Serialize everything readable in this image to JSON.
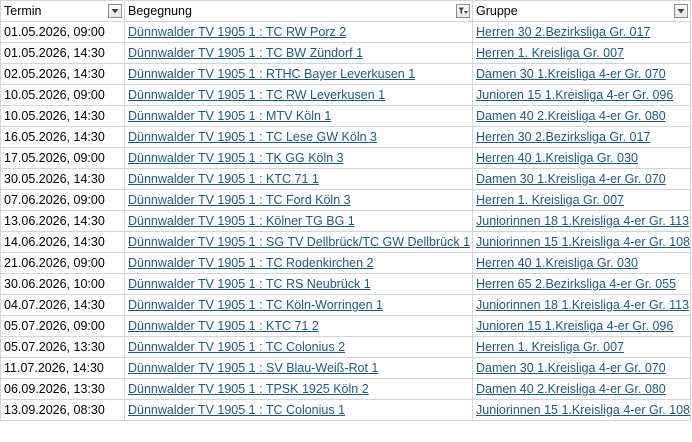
{
  "columns": [
    {
      "label": "Termin",
      "filter_active": false
    },
    {
      "label": "Begegnung",
      "filter_active": true
    },
    {
      "label": "Gruppe",
      "filter_active": false
    }
  ],
  "rows": [
    {
      "termin": "01.05.2026, 09:00",
      "begegnung": "Dünnwalder TV 1905 1 : TC RW Porz 2",
      "gruppe": "Herren 30 2.Bezirksliga Gr. 017"
    },
    {
      "termin": "01.05.2026, 14:30",
      "begegnung": "Dünnwalder TV 1905 1 : TC BW Zündorf 1",
      "gruppe": "Herren 1. Kreisliga Gr. 007"
    },
    {
      "termin": "02.05.2026, 14:30",
      "begegnung": "Dünnwalder TV 1905 1 : RTHC Bayer Leverkusen 1",
      "gruppe": "Damen 30 1.Kreisliga 4-er Gr. 070"
    },
    {
      "termin": "10.05.2026, 09:00",
      "begegnung": "Dünnwalder TV 1905 1 : TC RW Leverkusen 1",
      "gruppe": "Junioren 15 1.Kreisliga 4-er Gr. 096"
    },
    {
      "termin": "10.05.2026, 14:30",
      "begegnung": "Dünnwalder TV 1905 1 : MTV Köln 1",
      "gruppe": "Damen 40 2.Kreisliga 4-er Gr. 080"
    },
    {
      "termin": "16.05.2026, 14:30",
      "begegnung": "Dünnwalder TV 1905 1 : TC Lese GW Köln 3",
      "gruppe": "Herren 30 2.Bezirksliga Gr. 017"
    },
    {
      "termin": "17.05.2026, 09:00",
      "begegnung": "Dünnwalder TV 1905 1 : TK GG Köln 3",
      "gruppe": "Herren 40 1.Kreisliga Gr. 030"
    },
    {
      "termin": "30.05.2026, 14:30",
      "begegnung": "Dünnwalder TV 1905 1 : KTC 71 1",
      "gruppe": "Damen 30 1.Kreisliga 4-er Gr. 070"
    },
    {
      "termin": "07.06.2026, 09:00",
      "begegnung": "Dünnwalder TV 1905 1 : TC Ford Köln 3",
      "gruppe": "Herren 1. Kreisliga Gr. 007"
    },
    {
      "termin": "13.06.2026, 14:30",
      "begegnung": "Dünnwalder TV 1905 1 : Kölner TG BG 1",
      "gruppe": "Juniorinnen 18 1.Kreisliga 4-er Gr. 113"
    },
    {
      "termin": "14.06.2026, 14:30",
      "begegnung": "Dünnwalder TV 1905 1 : SG TV Dellbrück/TC GW Dellbrück 1",
      "gruppe": "Juniorinnen 15 1.Kreisliga 4-er Gr. 108"
    },
    {
      "termin": "21.06.2026, 09:00",
      "begegnung": "Dünnwalder TV 1905 1 : TC Rodenkirchen 2",
      "gruppe": "Herren 40 1.Kreisliga Gr. 030"
    },
    {
      "termin": "30.06.2026, 10:00",
      "begegnung": "Dünnwalder TV 1905 1 : TC RS Neubrück 1",
      "gruppe": "Herren 65 2.Bezirksliga 4-er Gr. 055"
    },
    {
      "termin": "04.07.2026, 14:30",
      "begegnung": "Dünnwalder TV 1905 1 : TC Köln-Worringen 1",
      "gruppe": "Juniorinnen 18 1.Kreisliga 4-er Gr. 113"
    },
    {
      "termin": "05.07.2026, 09:00",
      "begegnung": "Dünnwalder TV 1905 1 : KTC 71 2",
      "gruppe": "Junioren 15 1.Kreisliga 4-er Gr. 096"
    },
    {
      "termin": "05.07.2026, 13:30",
      "begegnung": "Dünnwalder TV 1905 1 : TC Colonius 2",
      "gruppe": "Herren 1. Kreisliga Gr. 007"
    },
    {
      "termin": "11.07.2026, 14:30",
      "begegnung": "Dünnwalder TV 1905 1 : SV Blau-Weiß-Rot 1",
      "gruppe": "Damen 30 1.Kreisliga 4-er Gr. 070"
    },
    {
      "termin": "06.09.2026, 13:30",
      "begegnung": "Dünnwalder TV 1905 1 : TPSK 1925 Köln 2",
      "gruppe": "Damen 40 2.Kreisliga 4-er Gr. 080"
    },
    {
      "termin": "13.09.2026, 08:30",
      "begegnung": "Dünnwalder TV 1905 1 : TC Colonius 1",
      "gruppe": "Juniorinnen 15 1.Kreisliga 4-er Gr. 108"
    }
  ],
  "colors": {
    "link": "#1f5a7a",
    "grid": "#d4d4d4"
  },
  "icons": {
    "filter": "chevron-down-icon",
    "filter_active": "filter-funnel-icon"
  }
}
